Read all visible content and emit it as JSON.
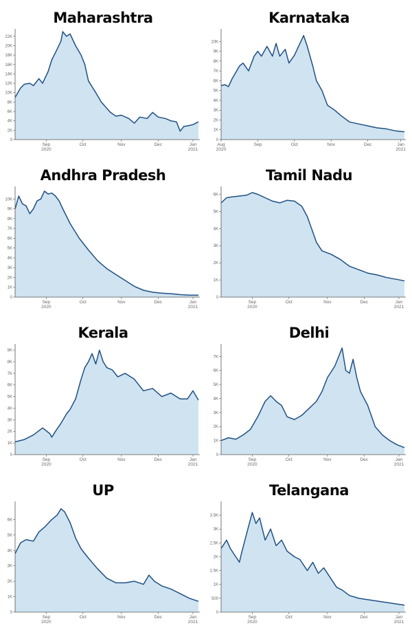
{
  "chart_data": [
    {
      "type": "area",
      "title": "Maharashtra",
      "ylim": [
        0,
        23000
      ],
      "yticks": [
        0,
        2000,
        4000,
        6000,
        8000,
        10000,
        12000,
        14000,
        16000,
        18000,
        20000,
        22000
      ],
      "ytick_labels": [
        "0",
        "2K",
        "4K",
        "6K",
        "8K",
        "10K",
        "12K",
        "14K",
        "16K",
        "18K",
        "20K",
        "22K"
      ],
      "xticks": [
        {
          "pos": 0.17,
          "label": "Sep",
          "sub": "2020"
        },
        {
          "pos": 0.37,
          "label": "Oct",
          "sub": ""
        },
        {
          "pos": 0.58,
          "label": "Nov",
          "sub": ""
        },
        {
          "pos": 0.78,
          "label": "Dec",
          "sub": ""
        },
        {
          "pos": 0.97,
          "label": "Jan",
          "sub": "2021"
        }
      ],
      "x": [
        0,
        0.03,
        0.05,
        0.08,
        0.1,
        0.13,
        0.15,
        0.18,
        0.2,
        0.22,
        0.25,
        0.26,
        0.28,
        0.3,
        0.33,
        0.36,
        0.38,
        0.4,
        0.44,
        0.47,
        0.52,
        0.55,
        0.58,
        0.62,
        0.65,
        0.68,
        0.72,
        0.75,
        0.78,
        0.82,
        0.85,
        0.88,
        0.9,
        0.92,
        0.95,
        0.97,
        1.0
      ],
      "values": [
        9000,
        11000,
        11800,
        12000,
        11500,
        13000,
        12000,
        14500,
        17000,
        18500,
        21000,
        23000,
        22000,
        22500,
        20000,
        18000,
        16000,
        12500,
        10000,
        8000,
        5800,
        5000,
        5200,
        4500,
        3500,
        4800,
        4500,
        5800,
        4800,
        4500,
        4000,
        3800,
        1800,
        2800,
        3000,
        3200,
        3800
      ]
    },
    {
      "type": "area",
      "title": "Karnataka",
      "ylim": [
        0,
        11000
      ],
      "yticks": [
        0,
        1000,
        2000,
        3000,
        4000,
        5000,
        6000,
        7000,
        8000,
        9000,
        10000
      ],
      "ytick_labels": [
        "0",
        "1K",
        "2K",
        "3K",
        "4K",
        "5K",
        "6K",
        "7K",
        "8K",
        "9K",
        "10K"
      ],
      "xticks": [
        {
          "pos": 0.0,
          "label": "Aug",
          "sub": "2020"
        },
        {
          "pos": 0.2,
          "label": "Sep",
          "sub": ""
        },
        {
          "pos": 0.4,
          "label": "Oct",
          "sub": ""
        },
        {
          "pos": 0.6,
          "label": "Nov",
          "sub": ""
        },
        {
          "pos": 0.8,
          "label": "Dec",
          "sub": ""
        },
        {
          "pos": 0.98,
          "label": "Jan",
          "sub": "2021"
        }
      ],
      "x": [
        0,
        0.02,
        0.04,
        0.06,
        0.1,
        0.12,
        0.15,
        0.18,
        0.2,
        0.22,
        0.25,
        0.28,
        0.3,
        0.32,
        0.35,
        0.37,
        0.4,
        0.43,
        0.45,
        0.47,
        0.5,
        0.52,
        0.55,
        0.58,
        0.62,
        0.65,
        0.7,
        0.75,
        0.8,
        0.85,
        0.9,
        0.95,
        1.0
      ],
      "values": [
        5500,
        5600,
        5400,
        6200,
        7500,
        7800,
        7000,
        8500,
        9000,
        8500,
        9500,
        8500,
        9800,
        8500,
        9200,
        7800,
        8600,
        9800,
        10600,
        9500,
        7500,
        6000,
        5000,
        3500,
        3000,
        2500,
        1800,
        1600,
        1400,
        1200,
        1100,
        900,
        800
      ]
    },
    {
      "type": "area",
      "title": "Andhra Pradesh",
      "ylim": [
        0,
        11000
      ],
      "yticks": [
        0,
        1000,
        2000,
        3000,
        4000,
        5000,
        6000,
        7000,
        8000,
        9000,
        10000
      ],
      "ytick_labels": [
        "0",
        "1K",
        "2K",
        "3K",
        "4K",
        "5K",
        "6K",
        "7K",
        "8K",
        "9K",
        "10K"
      ],
      "xticks": [
        {
          "pos": 0.17,
          "label": "Sep",
          "sub": "2020"
        },
        {
          "pos": 0.37,
          "label": "Oct",
          "sub": ""
        },
        {
          "pos": 0.58,
          "label": "Nov",
          "sub": ""
        },
        {
          "pos": 0.78,
          "label": "Dec",
          "sub": ""
        },
        {
          "pos": 0.97,
          "label": "Jan",
          "sub": "2021"
        }
      ],
      "x": [
        0,
        0.02,
        0.04,
        0.06,
        0.08,
        0.1,
        0.12,
        0.14,
        0.16,
        0.18,
        0.2,
        0.22,
        0.24,
        0.26,
        0.3,
        0.35,
        0.4,
        0.45,
        0.5,
        0.55,
        0.6,
        0.65,
        0.7,
        0.75,
        0.8,
        0.85,
        0.9,
        0.95,
        1.0
      ],
      "values": [
        9000,
        10300,
        9500,
        9300,
        8500,
        9000,
        9800,
        10000,
        10800,
        10500,
        10600,
        10300,
        9800,
        9000,
        7500,
        6000,
        4800,
        3700,
        2900,
        2300,
        1700,
        1100,
        700,
        500,
        400,
        350,
        250,
        200,
        200
      ]
    },
    {
      "type": "area",
      "title": "Tamil Nadu",
      "ylim": [
        0,
        6300
      ],
      "yticks": [
        0,
        1000,
        2000,
        3000,
        4000,
        5000,
        6000
      ],
      "ytick_labels": [
        "0",
        "1K",
        "2K",
        "3K",
        "4K",
        "5K",
        "6K"
      ],
      "xticks": [
        {
          "pos": 0.17,
          "label": "Sep",
          "sub": "2020"
        },
        {
          "pos": 0.37,
          "label": "Oct",
          "sub": ""
        },
        {
          "pos": 0.58,
          "label": "Nov",
          "sub": ""
        },
        {
          "pos": 0.78,
          "label": "Dec",
          "sub": ""
        },
        {
          "pos": 0.97,
          "label": "Jan",
          "sub": "2021"
        }
      ],
      "x": [
        0,
        0.03,
        0.06,
        0.1,
        0.14,
        0.17,
        0.2,
        0.24,
        0.28,
        0.32,
        0.36,
        0.4,
        0.44,
        0.47,
        0.5,
        0.52,
        0.55,
        0.6,
        0.65,
        0.7,
        0.75,
        0.8,
        0.85,
        0.9,
        0.95,
        1.0
      ],
      "values": [
        5500,
        5800,
        5850,
        5900,
        5950,
        6100,
        6000,
        5800,
        5600,
        5500,
        5650,
        5600,
        5300,
        4700,
        3800,
        3200,
        2700,
        2500,
        2200,
        1800,
        1600,
        1400,
        1300,
        1150,
        1050,
        950
      ]
    },
    {
      "type": "area",
      "title": "Kerala",
      "ylim": [
        0,
        9300
      ],
      "yticks": [
        0,
        1000,
        2000,
        3000,
        4000,
        5000,
        6000,
        7000,
        8000,
        9000
      ],
      "ytick_labels": [
        "0",
        "1K",
        "2K",
        "3K",
        "4K",
        "5K",
        "6K",
        "7K",
        "8K",
        "9K"
      ],
      "xticks": [
        {
          "pos": 0.17,
          "label": "Sep",
          "sub": "2020"
        },
        {
          "pos": 0.37,
          "label": "Oct",
          "sub": ""
        },
        {
          "pos": 0.58,
          "label": "Nov",
          "sub": ""
        },
        {
          "pos": 0.78,
          "label": "Dec",
          "sub": ""
        },
        {
          "pos": 0.97,
          "label": "Jan",
          "sub": "2021"
        }
      ],
      "x": [
        0,
        0.05,
        0.1,
        0.15,
        0.19,
        0.2,
        0.22,
        0.25,
        0.28,
        0.3,
        0.33,
        0.36,
        0.38,
        0.4,
        0.42,
        0.44,
        0.46,
        0.48,
        0.5,
        0.53,
        0.56,
        0.6,
        0.65,
        0.7,
        0.75,
        0.8,
        0.85,
        0.9,
        0.94,
        0.97,
        1.0
      ],
      "values": [
        1100,
        1300,
        1700,
        2300,
        1800,
        1500,
        2000,
        2700,
        3500,
        3900,
        4800,
        6500,
        7500,
        8000,
        8700,
        7800,
        9000,
        8000,
        7500,
        7300,
        6700,
        7000,
        6500,
        5500,
        5700,
        5000,
        5300,
        4800,
        4800,
        5500,
        4700
      ]
    },
    {
      "type": "area",
      "title": "Delhi",
      "ylim": [
        0,
        7700
      ],
      "yticks": [
        0,
        1000,
        2000,
        3000,
        4000,
        5000,
        6000,
        7000
      ],
      "ytick_labels": [
        "0",
        "1K",
        "2K",
        "3K",
        "4K",
        "5K",
        "6K",
        "7K"
      ],
      "xticks": [
        {
          "pos": 0.17,
          "label": "Sep",
          "sub": "2020"
        },
        {
          "pos": 0.37,
          "label": "Oct",
          "sub": ""
        },
        {
          "pos": 0.58,
          "label": "Nov",
          "sub": ""
        },
        {
          "pos": 0.78,
          "label": "Dec",
          "sub": ""
        },
        {
          "pos": 0.97,
          "label": "Jan",
          "sub": "2021"
        }
      ],
      "x": [
        0,
        0.04,
        0.08,
        0.12,
        0.16,
        0.2,
        0.24,
        0.27,
        0.3,
        0.33,
        0.36,
        0.4,
        0.44,
        0.48,
        0.52,
        0.55,
        0.58,
        0.62,
        0.66,
        0.68,
        0.7,
        0.72,
        0.74,
        0.76,
        0.8,
        0.84,
        0.88,
        0.92,
        0.96,
        1.0
      ],
      "values": [
        1000,
        1200,
        1100,
        1400,
        1800,
        2700,
        3800,
        4200,
        3800,
        3500,
        2700,
        2500,
        2800,
        3300,
        3800,
        4500,
        5500,
        6300,
        7600,
        6000,
        5800,
        6800,
        5500,
        4500,
        3500,
        2000,
        1400,
        1000,
        700,
        500
      ]
    },
    {
      "type": "area",
      "title": "UP",
      "ylim": [
        0,
        7000
      ],
      "yticks": [
        0,
        1000,
        2000,
        3000,
        4000,
        5000,
        6000
      ],
      "ytick_labels": [
        "0",
        "1K",
        "2K",
        "3K",
        "4K",
        "5K",
        "6K"
      ],
      "xticks": [
        {
          "pos": 0.17,
          "label": "Sep",
          "sub": "2020"
        },
        {
          "pos": 0.37,
          "label": "Oct",
          "sub": ""
        },
        {
          "pos": 0.58,
          "label": "Nov",
          "sub": ""
        },
        {
          "pos": 0.78,
          "label": "Dec",
          "sub": ""
        },
        {
          "pos": 0.97,
          "label": "Jan",
          "sub": "2021"
        }
      ],
      "x": [
        0,
        0.03,
        0.06,
        0.1,
        0.13,
        0.16,
        0.2,
        0.23,
        0.25,
        0.27,
        0.3,
        0.33,
        0.36,
        0.4,
        0.45,
        0.5,
        0.55,
        0.6,
        0.65,
        0.7,
        0.73,
        0.76,
        0.8,
        0.85,
        0.9,
        0.95,
        1.0
      ],
      "values": [
        3800,
        4500,
        4700,
        4600,
        5200,
        5500,
        6000,
        6300,
        6700,
        6500,
        5800,
        4800,
        4100,
        3500,
        2800,
        2200,
        1900,
        1900,
        2000,
        1800,
        2400,
        2000,
        1700,
        1500,
        1200,
        900,
        700
      ]
    },
    {
      "type": "area",
      "title": "Telangana",
      "ylim": [
        0,
        3900
      ],
      "yticks": [
        0,
        500,
        1000,
        1500,
        2000,
        2500,
        3000,
        3500
      ],
      "ytick_labels": [
        "0",
        "500",
        "1K",
        "1.5K",
        "2K",
        "2.5K",
        "3K",
        "3.5K"
      ],
      "xticks": [
        {
          "pos": 0.17,
          "label": "Sep",
          "sub": "2020"
        },
        {
          "pos": 0.37,
          "label": "Oct",
          "sub": ""
        },
        {
          "pos": 0.58,
          "label": "Nov",
          "sub": ""
        },
        {
          "pos": 0.78,
          "label": "Dec",
          "sub": ""
        },
        {
          "pos": 0.97,
          "label": "Jan",
          "sub": "2021"
        }
      ],
      "x": [
        0,
        0.03,
        0.05,
        0.07,
        0.1,
        0.11,
        0.13,
        0.15,
        0.17,
        0.19,
        0.21,
        0.24,
        0.27,
        0.3,
        0.33,
        0.36,
        0.4,
        0.43,
        0.47,
        0.5,
        0.53,
        0.56,
        0.6,
        0.63,
        0.66,
        0.7,
        0.75,
        0.8,
        0.85,
        0.9,
        0.95,
        1.0
      ],
      "values": [
        2300,
        2600,
        2300,
        2100,
        1800,
        2100,
        2600,
        3100,
        3600,
        3200,
        3400,
        2600,
        3000,
        2400,
        2600,
        2200,
        2000,
        1900,
        1500,
        1800,
        1400,
        1600,
        1200,
        900,
        800,
        600,
        500,
        450,
        400,
        350,
        300,
        250
      ]
    }
  ],
  "colors": {
    "fill": "#cfe3f1",
    "line": "#1f4f82",
    "tick_text": "#666666",
    "axis": "#555555"
  }
}
